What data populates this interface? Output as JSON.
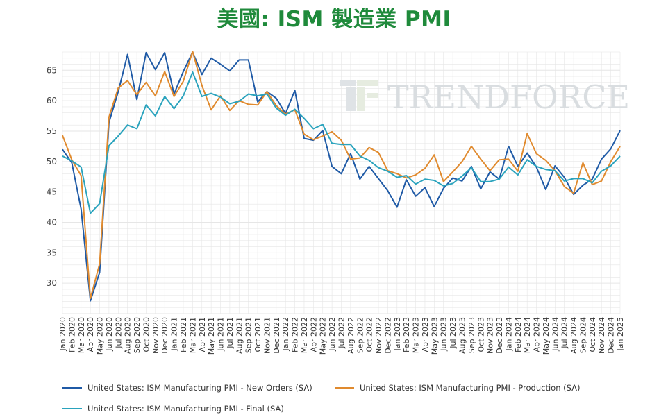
{
  "title": "美國: ISM 製造業 PMI",
  "watermark": "TRENDFORCE",
  "colors": {
    "new_orders": "#1f5aa6",
    "production": "#e08a2e",
    "final": "#2aa3bd",
    "title": "#1f8a3b",
    "grid": "#e6e6e6"
  },
  "chart_data": {
    "type": "line",
    "title": "美國: ISM 製造業 PMI",
    "ylim": [
      25,
      68
    ],
    "yticks": [
      30,
      35,
      40,
      45,
      50,
      55,
      60,
      65
    ],
    "grid": true,
    "legend_position": "bottom",
    "categories": [
      "Jan 2020",
      "Feb 2020",
      "Mar 2020",
      "Apr 2020",
      "May 2020",
      "Jun 2020",
      "Jul 2020",
      "Aug 2020",
      "Sep 2020",
      "Oct 2020",
      "Nov 2020",
      "Dec 2020",
      "Jan 2021",
      "Feb 2021",
      "Mar 2021",
      "Apr 2021",
      "May 2021",
      "Jun 2021",
      "Jul 2021",
      "Aug 2021",
      "Sep 2021",
      "Oct 2021",
      "Nov 2021",
      "Dec 2021",
      "Jan 2022",
      "Feb 2022",
      "Mar 2022",
      "Apr 2022",
      "May 2022",
      "Jun 2022",
      "Jul 2022",
      "Aug 2022",
      "Sep 2022",
      "Oct 2022",
      "Nov 2022",
      "Dec 2022",
      "Jan 2023",
      "Feb 2023",
      "Mar 2023",
      "Apr 2023",
      "May 2023",
      "Jun 2023",
      "Jul 2023",
      "Aug 2023",
      "Sep 2023",
      "Oct 2023",
      "Nov 2023",
      "Dec 2023",
      "Jan 2024",
      "Feb 2024",
      "Mar 2024",
      "Apr 2024",
      "May 2024",
      "Jun 2024",
      "Jul 2024",
      "Aug 2024",
      "Sep 2024",
      "Oct 2024",
      "Nov 2024",
      "Dec 2024",
      "Jan 2025"
    ],
    "series": [
      {
        "name": "United States: ISM Manufacturing PMI - New Orders (SA)",
        "color_key": "new_orders",
        "values": [
          52.0,
          49.8,
          42.2,
          27.1,
          31.8,
          56.4,
          61.5,
          67.6,
          60.2,
          67.9,
          65.1,
          67.9,
          61.1,
          64.8,
          68.0,
          64.3,
          67.0,
          66.0,
          64.9,
          66.7,
          66.7,
          59.8,
          61.5,
          60.4,
          57.9,
          61.7,
          53.8,
          53.5,
          55.1,
          49.2,
          48.0,
          51.3,
          47.1,
          49.2,
          47.2,
          45.2,
          42.5,
          47.0,
          44.3,
          45.7,
          42.6,
          45.6,
          47.3,
          46.8,
          49.2,
          45.5,
          48.3,
          47.1,
          52.5,
          49.2,
          51.4,
          49.1,
          45.4,
          49.3,
          47.4,
          44.6,
          46.1,
          47.1,
          50.4,
          52.1,
          55.1
        ]
      },
      {
        "name": "United States: ISM Manufacturing PMI - Production (SA)",
        "color_key": "production",
        "values": [
          54.3,
          50.3,
          47.7,
          27.5,
          33.2,
          57.3,
          62.1,
          63.3,
          61.0,
          63.0,
          60.8,
          64.8,
          60.7,
          63.2,
          68.1,
          62.5,
          58.5,
          60.8,
          58.4,
          60.0,
          59.4,
          59.3,
          61.5,
          59.2,
          57.8,
          58.5,
          54.5,
          53.6,
          54.2,
          54.9,
          53.5,
          50.4,
          50.6,
          52.3,
          51.5,
          48.5,
          48.0,
          47.3,
          47.8,
          48.9,
          51.1,
          46.7,
          48.3,
          50.0,
          52.5,
          50.4,
          48.5,
          50.3,
          50.4,
          48.4,
          54.6,
          51.3,
          50.2,
          48.5,
          45.9,
          44.8,
          49.8,
          46.2,
          46.8,
          50.0,
          52.5
        ]
      },
      {
        "name": "United States: ISM Manufacturing PMI - Final (SA)",
        "color_key": "final",
        "values": [
          50.9,
          50.1,
          49.1,
          41.5,
          43.1,
          52.6,
          54.2,
          56.0,
          55.4,
          59.3,
          57.5,
          60.7,
          58.7,
          60.8,
          64.7,
          60.7,
          61.2,
          60.6,
          59.5,
          59.9,
          61.1,
          60.8,
          61.1,
          58.8,
          57.6,
          58.6,
          57.1,
          55.4,
          56.1,
          53.0,
          52.8,
          52.8,
          50.9,
          50.2,
          49.0,
          48.4,
          47.4,
          47.7,
          46.3,
          47.1,
          46.9,
          46.0,
          46.4,
          47.6,
          49.0,
          46.7,
          46.7,
          47.1,
          49.1,
          47.8,
          50.3,
          49.2,
          48.7,
          48.5,
          46.8,
          47.2,
          47.2,
          46.5,
          48.4,
          49.3,
          50.9
        ]
      }
    ]
  }
}
